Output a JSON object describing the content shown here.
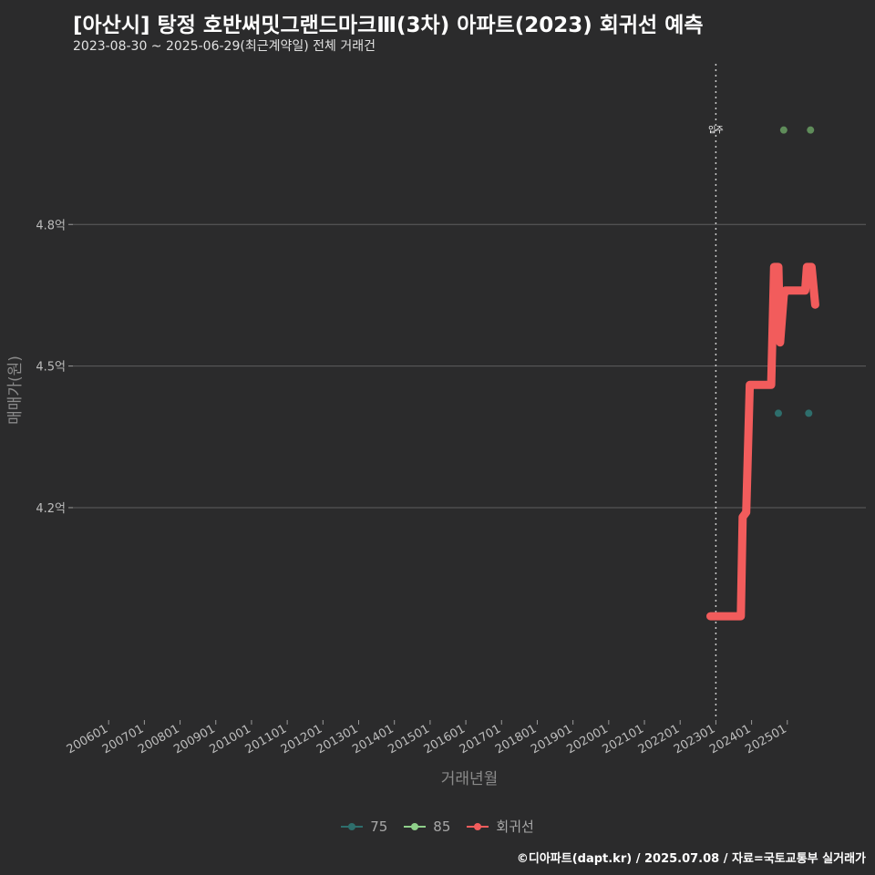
{
  "chart_data": {
    "type": "line",
    "title": "[아산시] 탕정 호반써밋그랜드마크Ⅲ(3차) 아파트(2023) 회귀선 예측",
    "subtitle": "2023-08-30 ~ 2025-06-29(최근계약일) 전체 거래건",
    "xlabel": "거래년월",
    "ylabel": "매매가(원)",
    "x_ticks": [
      "200601",
      "200701",
      "200801",
      "200901",
      "201001",
      "201101",
      "201201",
      "201301",
      "201401",
      "201501",
      "201601",
      "201701",
      "201801",
      "201901",
      "202001",
      "202101",
      "202201",
      "202301",
      "202401",
      "202501"
    ],
    "y_ticks": [
      {
        "value": 4.2,
        "label": "4.2억"
      },
      {
        "value": 4.5,
        "label": "4.5억"
      },
      {
        "value": 4.8,
        "label": "4.8억"
      }
    ],
    "xlim": [
      2005.0,
      2027.2
    ],
    "ylim": [
      3.75,
      5.15
    ],
    "vline": {
      "x": 2023.0,
      "label": "입주"
    },
    "series": [
      {
        "name": "75",
        "type": "scatter",
        "color": "#2e6e6c",
        "points": [
          [
            2024.75,
            4.4
          ],
          [
            2025.6,
            4.4
          ]
        ]
      },
      {
        "name": "85",
        "type": "scatter",
        "color": "#5f8c5a",
        "points": [
          [
            2024.9,
            5.0
          ],
          [
            2025.65,
            5.0
          ]
        ]
      },
      {
        "name": "회귀선",
        "type": "line",
        "color": "#f25c5c",
        "points": [
          [
            2022.85,
            3.97
          ],
          [
            2023.7,
            3.97
          ],
          [
            2023.75,
            4.18
          ],
          [
            2023.85,
            4.19
          ],
          [
            2023.95,
            4.46
          ],
          [
            2024.15,
            4.46
          ],
          [
            2024.55,
            4.46
          ],
          [
            2024.63,
            4.71
          ],
          [
            2024.75,
            4.71
          ],
          [
            2024.8,
            4.55
          ],
          [
            2024.9,
            4.65
          ],
          [
            2024.95,
            4.66
          ],
          [
            2025.35,
            4.66
          ],
          [
            2025.5,
            4.66
          ],
          [
            2025.55,
            4.71
          ],
          [
            2025.68,
            4.71
          ],
          [
            2025.78,
            4.63
          ]
        ]
      }
    ]
  },
  "legend": {
    "items": [
      "75",
      "85",
      "회귀선"
    ]
  },
  "caption": "©디아파트(dapt.kr) / 2025.07.08 / 자료=국토교통부 실거래가"
}
